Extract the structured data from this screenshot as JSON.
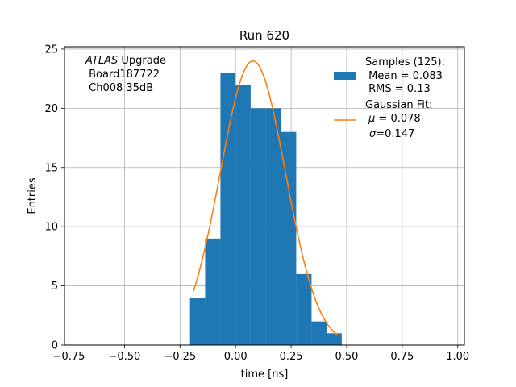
{
  "chart_data": {
    "type": "bar",
    "title": "Run 620",
    "xlabel": "time [ns]",
    "ylabel": "Entries",
    "xlim": [
      -0.77,
      1.03
    ],
    "ylim": [
      0,
      25.2
    ],
    "xticks": [
      -0.75,
      -0.5,
      -0.25,
      0.0,
      0.25,
      0.5,
      0.75,
      1.0
    ],
    "xtick_labels": [
      "−0.75",
      "−0.50",
      "−0.25",
      "0.00",
      "0.25",
      "0.50",
      "0.75",
      "1.00"
    ],
    "yticks": [
      0,
      5,
      10,
      15,
      20,
      25
    ],
    "ytick_labels": [
      "0",
      "5",
      "10",
      "15",
      "20",
      "25"
    ],
    "grid": true,
    "legend_position": "top-right",
    "annotation": {
      "line1_italic": "ATLAS",
      "line1_rest": " Upgrade",
      "line2": " Board187722",
      "line3": " Ch008 35dB"
    },
    "histogram": {
      "name": "Samples (125):",
      "stats": [
        " Mean = 0.083",
        " RMS = 0.13"
      ],
      "color": "#1f77b4",
      "bins": [
        {
          "x0": -0.205,
          "x1": -0.137,
          "count": 4
        },
        {
          "x0": -0.137,
          "x1": -0.068,
          "count": 9
        },
        {
          "x0": -0.068,
          "x1": 0.0,
          "count": 23
        },
        {
          "x0": 0.0,
          "x1": 0.068,
          "count": 22
        },
        {
          "x0": 0.068,
          "x1": 0.137,
          "count": 20
        },
        {
          "x0": 0.137,
          "x1": 0.205,
          "count": 20
        },
        {
          "x0": 0.205,
          "x1": 0.273,
          "count": 18
        },
        {
          "x0": 0.273,
          "x1": 0.342,
          "count": 6
        },
        {
          "x0": 0.342,
          "x1": 0.41,
          "count": 2
        },
        {
          "x0": 0.41,
          "x1": 0.478,
          "count": 1
        }
      ]
    },
    "fit": {
      "name": "Gaussian Fit:",
      "params": [
        {
          "symbol": "μ",
          "text": " = 0.078"
        },
        {
          "symbol": "σ",
          "text": "=0.147"
        }
      ],
      "color": "#ff7f0e",
      "amplitude": 24.0,
      "mu": 0.078,
      "sigma": 0.147,
      "x_range": [
        -0.19,
        0.46
      ]
    }
  }
}
